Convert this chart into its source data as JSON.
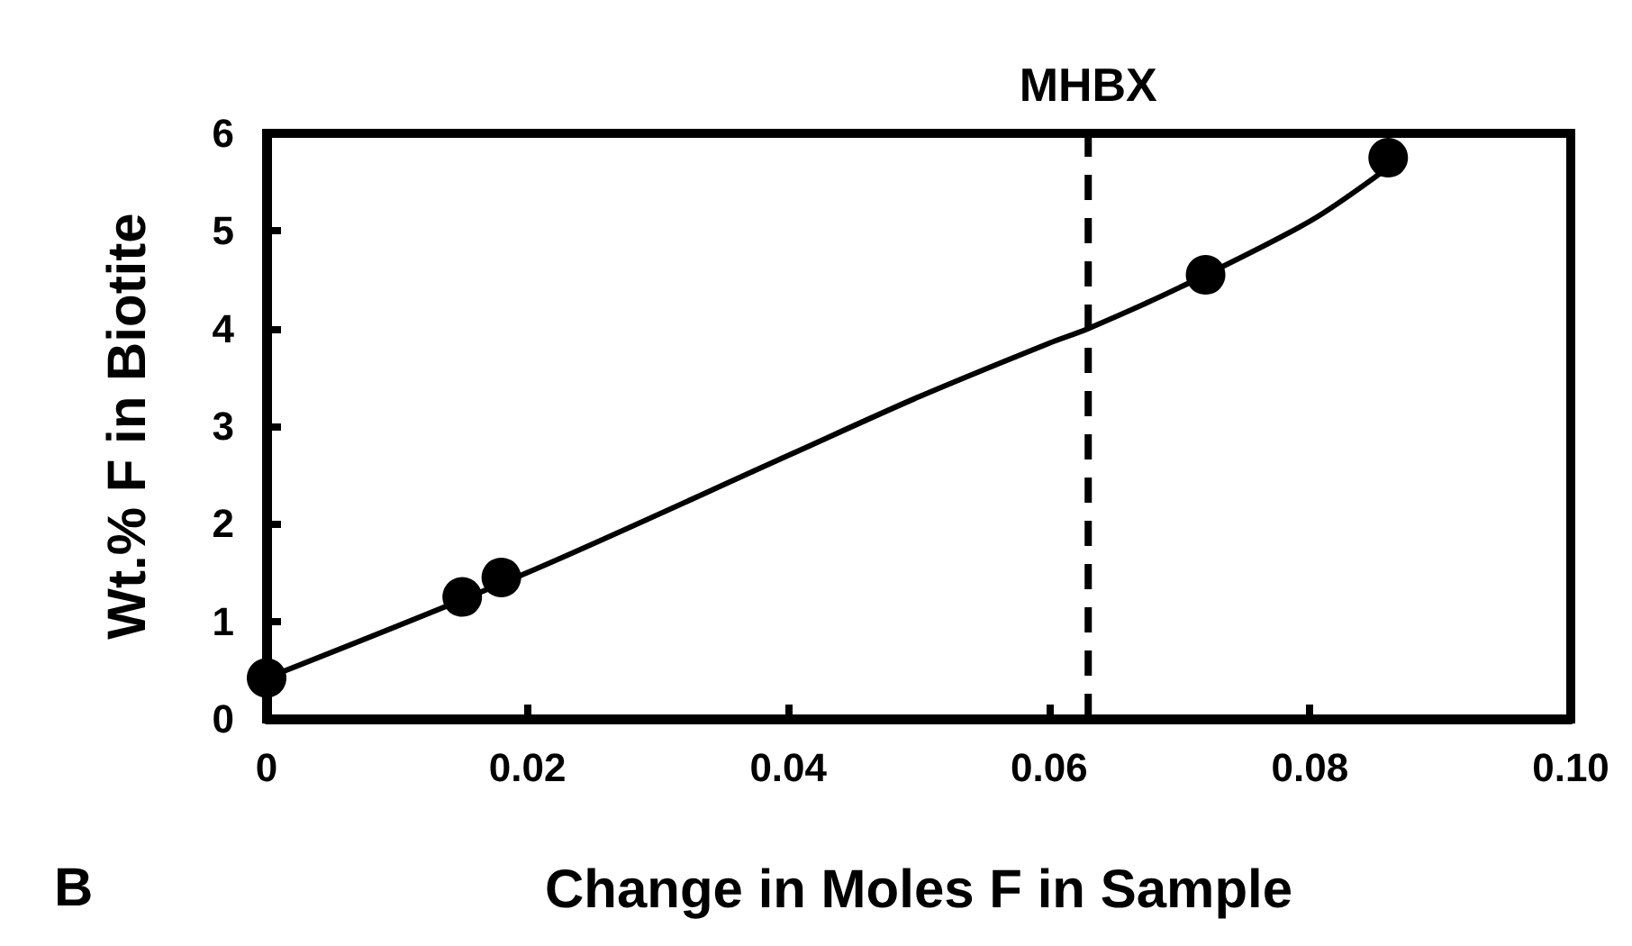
{
  "chart_data": {
    "type": "scatter",
    "xlabel": "Change in Moles F in Sample",
    "ylabel": "Wt.% F in Biotite",
    "xlim": [
      0,
      0.1
    ],
    "ylim": [
      0,
      6
    ],
    "xticks": [
      0,
      0.02,
      0.04,
      0.06,
      0.08,
      {
        "value": 0.1,
        "label": "0.10"
      }
    ],
    "yticks": [
      0,
      1,
      2,
      3,
      4,
      5,
      6
    ],
    "grid": false,
    "marker": "circle",
    "series": [
      {
        "color": "#000000",
        "x": [
          0,
          0.015,
          0.018,
          0.072,
          0.086
        ],
        "values": [
          0.42,
          1.25,
          1.45,
          4.55,
          5.75
        ]
      },
      {
        "type": "line",
        "color": "#000000",
        "marker": "none",
        "x": [
          0,
          0.02,
          0.04,
          0.05,
          0.06,
          0.063,
          0.07,
          0.08,
          0.086
        ],
        "values": [
          0.42,
          1.5,
          2.7,
          3.3,
          3.85,
          4.0,
          4.42,
          5.1,
          5.65
        ]
      }
    ],
    "ref_lines": [
      {
        "axis": "x",
        "value": 0.063,
        "label": "MHBX",
        "line_style": "dashed",
        "color": "#000000"
      }
    ],
    "annotations": [
      "B"
    ]
  }
}
